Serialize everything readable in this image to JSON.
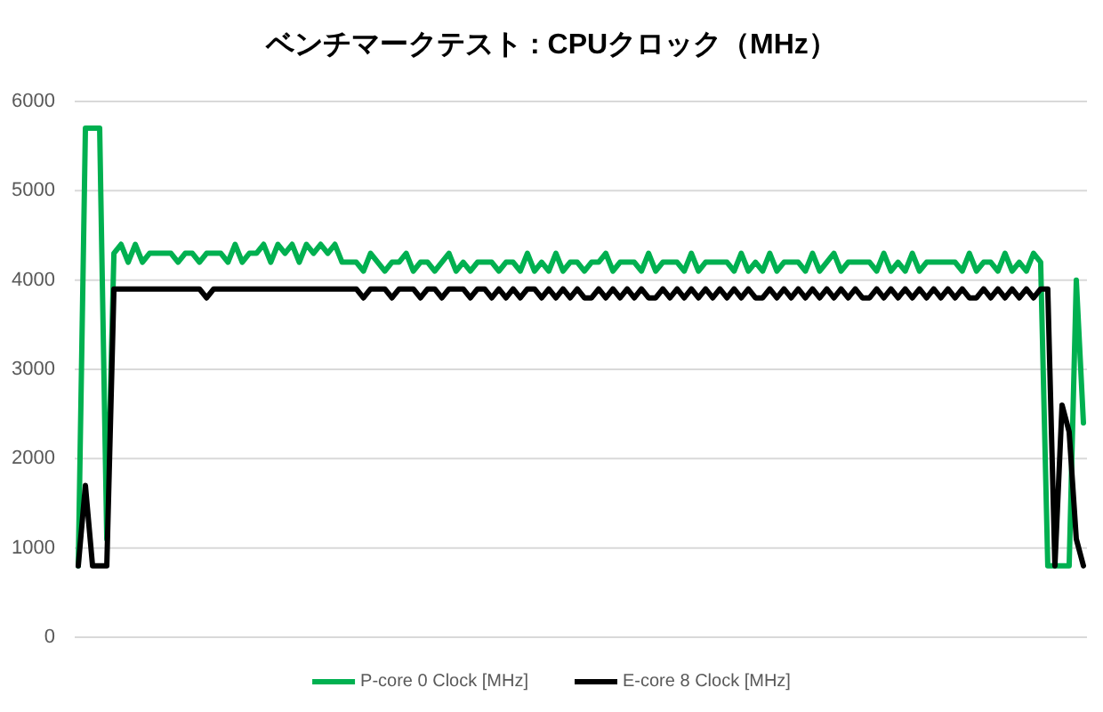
{
  "chart_data": {
    "type": "line",
    "title": "ベンチマークテスト : CPUクロック（MHz）",
    "categories": [
      null,
      null,
      null,
      null,
      null,
      null,
      null,
      null,
      null,
      null,
      null,
      null,
      null,
      null,
      null,
      null,
      null,
      null,
      null,
      null,
      null,
      null,
      null,
      null,
      null,
      null,
      null,
      null,
      null,
      null,
      null,
      null,
      null,
      null,
      null,
      null,
      null,
      null,
      null,
      null,
      null,
      null,
      null,
      null,
      null,
      null,
      null,
      null,
      null,
      null,
      null,
      null,
      null,
      null,
      null,
      null,
      null,
      null,
      null,
      null,
      null,
      null,
      null,
      null,
      null,
      null,
      null,
      null,
      null,
      null,
      null,
      null,
      null,
      null,
      null,
      null,
      null,
      null,
      null,
      null,
      null,
      null,
      null,
      null,
      null,
      null,
      null,
      null,
      null,
      null,
      null,
      null,
      null,
      null,
      null,
      null,
      null,
      null,
      null,
      null,
      null,
      null,
      null,
      null,
      null,
      null,
      null,
      null,
      null,
      null,
      null,
      null,
      null,
      null,
      null,
      null,
      null,
      null,
      null,
      null,
      null,
      null,
      null,
      null,
      null,
      null,
      null,
      null,
      null,
      null,
      null,
      null,
      null,
      null,
      null,
      null,
      null,
      null,
      null,
      null,
      null,
      null
    ],
    "series": [
      {
        "name": "P-core 0 Clock [MHz]",
        "color": "#00b050",
        "values": [
          800,
          5700,
          5700,
          5700,
          1100,
          4300,
          4400,
          4200,
          4400,
          4200,
          4300,
          4300,
          4300,
          4300,
          4200,
          4300,
          4300,
          4200,
          4300,
          4300,
          4300,
          4200,
          4400,
          4200,
          4300,
          4300,
          4400,
          4200,
          4400,
          4300,
          4400,
          4200,
          4400,
          4300,
          4400,
          4300,
          4400,
          4200,
          4200,
          4200,
          4100,
          4300,
          4200,
          4100,
          4200,
          4200,
          4300,
          4100,
          4200,
          4200,
          4100,
          4200,
          4300,
          4100,
          4200,
          4100,
          4200,
          4200,
          4200,
          4100,
          4200,
          4200,
          4100,
          4300,
          4100,
          4200,
          4100,
          4300,
          4100,
          4200,
          4200,
          4100,
          4200,
          4200,
          4300,
          4100,
          4200,
          4200,
          4200,
          4100,
          4300,
          4100,
          4200,
          4200,
          4200,
          4100,
          4300,
          4100,
          4200,
          4200,
          4200,
          4200,
          4100,
          4300,
          4100,
          4200,
          4100,
          4300,
          4100,
          4200,
          4200,
          4200,
          4100,
          4300,
          4100,
          4200,
          4300,
          4100,
          4200,
          4200,
          4200,
          4200,
          4100,
          4300,
          4100,
          4200,
          4100,
          4300,
          4100,
          4200,
          4200,
          4200,
          4200,
          4200,
          4100,
          4300,
          4100,
          4200,
          4200,
          4100,
          4300,
          4100,
          4200,
          4100,
          4300,
          4200,
          800,
          800,
          800,
          800,
          4000,
          2400
        ]
      },
      {
        "name": "E-core 8 Clock [MHz]",
        "color": "#000000",
        "values": [
          800,
          1700,
          800,
          800,
          800,
          3900,
          3900,
          3900,
          3900,
          3900,
          3900,
          3900,
          3900,
          3900,
          3900,
          3900,
          3900,
          3900,
          3800,
          3900,
          3900,
          3900,
          3900,
          3900,
          3900,
          3900,
          3900,
          3900,
          3900,
          3900,
          3900,
          3900,
          3900,
          3900,
          3900,
          3900,
          3900,
          3900,
          3900,
          3900,
          3800,
          3900,
          3900,
          3900,
          3800,
          3900,
          3900,
          3900,
          3800,
          3900,
          3900,
          3800,
          3900,
          3900,
          3900,
          3800,
          3900,
          3900,
          3800,
          3900,
          3800,
          3900,
          3800,
          3900,
          3900,
          3800,
          3900,
          3800,
          3900,
          3800,
          3900,
          3800,
          3800,
          3900,
          3800,
          3900,
          3800,
          3900,
          3800,
          3900,
          3800,
          3800,
          3900,
          3800,
          3900,
          3800,
          3900,
          3800,
          3900,
          3800,
          3900,
          3800,
          3900,
          3800,
          3900,
          3800,
          3800,
          3900,
          3800,
          3900,
          3800,
          3900,
          3800,
          3900,
          3800,
          3900,
          3800,
          3900,
          3800,
          3900,
          3800,
          3800,
          3900,
          3800,
          3900,
          3800,
          3900,
          3800,
          3900,
          3800,
          3900,
          3800,
          3900,
          3800,
          3900,
          3800,
          3800,
          3900,
          3800,
          3900,
          3800,
          3900,
          3800,
          3900,
          3800,
          3900,
          3900,
          800,
          2600,
          2300,
          1100,
          800
        ]
      }
    ],
    "ylim": [
      0,
      6000
    ],
    "yticks": [
      0,
      1000,
      2000,
      3000,
      4000,
      5000,
      6000
    ],
    "grid": "y",
    "legend": "bottom",
    "line_style": "solid"
  }
}
